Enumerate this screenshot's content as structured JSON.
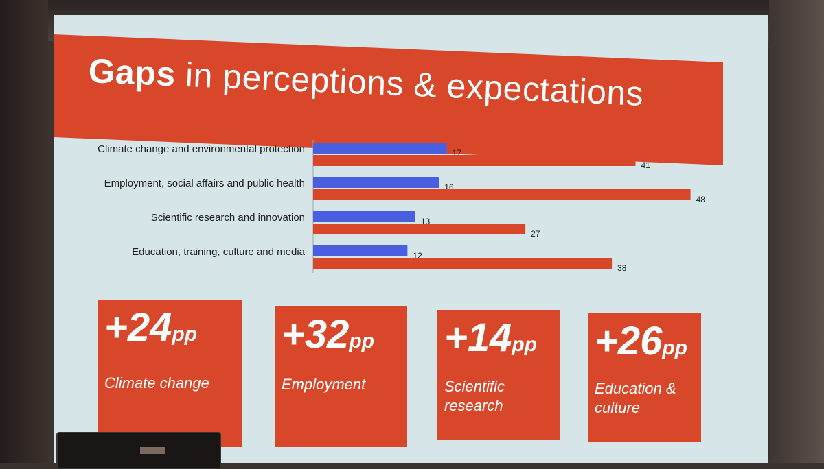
{
  "slide": {
    "title_bold": "Gaps",
    "title_rest": " in perceptions & expectations",
    "colors": {
      "red": "#d9472b",
      "blue": "#4a5fe0",
      "background": "#d6e6e8"
    }
  },
  "chart_data": {
    "type": "bar",
    "orientation": "horizontal",
    "categories": [
      "Climate change and environmental protection",
      "Employment, social affairs and public health",
      "Scientific research and innovation",
      "Education, training, culture and media"
    ],
    "series": [
      {
        "color": "#4a5fe0",
        "values": [
          17,
          16,
          13,
          12
        ]
      },
      {
        "color": "#d9472b",
        "values": [
          41,
          48,
          27,
          38
        ]
      }
    ],
    "data_labels": true,
    "grid": false
  },
  "gaps": [
    {
      "value": "+24",
      "unit": "pp",
      "label": "Climate change"
    },
    {
      "value": "+32",
      "unit": "pp",
      "label": "Employment"
    },
    {
      "value": "+14",
      "unit": "pp",
      "label": "Scientific research"
    },
    {
      "value": "+26",
      "unit": "pp",
      "label": "Education & culture"
    }
  ]
}
